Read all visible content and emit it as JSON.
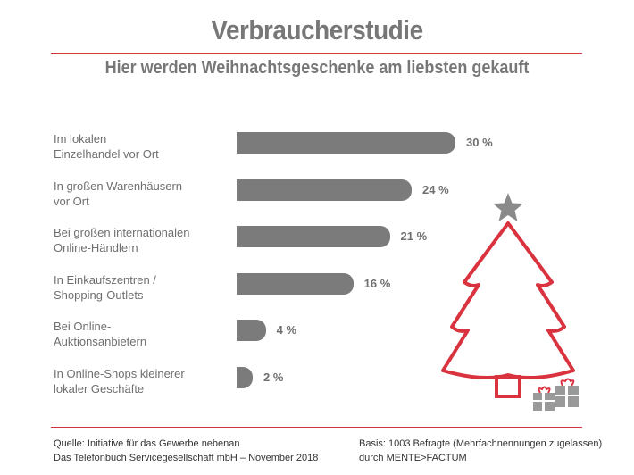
{
  "header": {
    "title": "Verbraucherstudie",
    "subtitle": "Hier werden Weihnachtsgeschenke am liebsten gekauft"
  },
  "chart_data": {
    "type": "bar",
    "orientation": "horizontal",
    "categories": [
      [
        "Im lokalen",
        "Einzelhandel vor Ort"
      ],
      [
        "In großen Warenhäusern",
        "vor Ort"
      ],
      [
        "Bei großen internationalen",
        "Online-Händlern"
      ],
      [
        "In Einkaufszentren /",
        "Shopping-Outlets"
      ],
      [
        "Bei Online-",
        "Auktionsanbietern"
      ],
      [
        "In Online-Shops kleinerer",
        "lokaler Geschäfte"
      ]
    ],
    "values": [
      30,
      24,
      21,
      16,
      4,
      2
    ],
    "value_labels": [
      "30 %",
      "24 %",
      "21 %",
      "16 %",
      "4 %",
      "2 %"
    ],
    "xlim": [
      0,
      30
    ],
    "grid": false,
    "bar_color": "#7b7b7b"
  },
  "footer": {
    "left": [
      "Quelle: Initiative für das Gewerbe nebenan",
      "Das Telefonbuch Servicegesellschaft mbH – November 2018"
    ],
    "right": [
      "Basis: 1003 Befragte (Mehrfachnennungen zugelassen)",
      "durch MENTE>FACTUM"
    ]
  },
  "colors": {
    "accent": "#d9333f",
    "text_gray": "#777777",
    "star": "#8a8a8a"
  }
}
